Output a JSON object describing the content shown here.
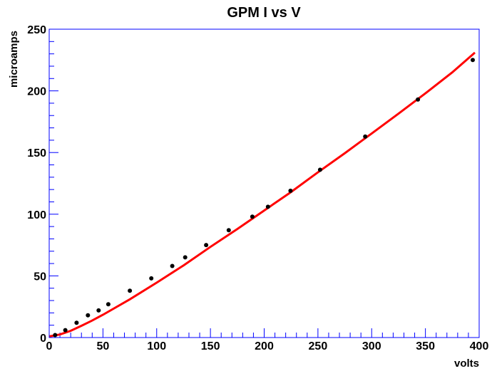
{
  "chart_data": {
    "type": "scatter",
    "title": "GPM I vs V",
    "xlabel": "volts",
    "ylabel": "microamps",
    "xlim": [
      0,
      400
    ],
    "ylim": [
      0,
      250
    ],
    "x_ticks": [
      0,
      50,
      100,
      150,
      200,
      250,
      300,
      350,
      400
    ],
    "y_ticks": [
      0,
      50,
      100,
      150,
      200,
      250
    ],
    "grid": false,
    "legend": "none",
    "colors": {
      "frame": "#0000ff",
      "points": "#000000",
      "fit": "#ff0000"
    },
    "series": [
      {
        "kind": "points",
        "x": [
          5.5,
          15,
          25.5,
          36,
          46,
          55,
          75,
          95,
          114.5,
          126.5,
          146,
          167,
          189,
          203.5,
          224.5,
          252,
          294,
          343,
          394
        ],
        "y": [
          2,
          6,
          12,
          18,
          22,
          27,
          38,
          48,
          58,
          65,
          75,
          87,
          98,
          106,
          119,
          136,
          163,
          193,
          225
        ]
      },
      {
        "kind": "fit-line",
        "x": [
          0,
          10,
          20,
          30,
          40,
          50,
          75,
          100,
          125,
          150,
          175,
          200,
          225,
          250,
          275,
          300,
          325,
          350,
          375,
          396
        ],
        "y": [
          0.9,
          2.5,
          5.5,
          9.5,
          13.8,
          18.5,
          31,
          44.5,
          58.5,
          73.5,
          88,
          103,
          118,
          134,
          149.5,
          165.5,
          181.5,
          198,
          215,
          231
        ]
      }
    ]
  }
}
